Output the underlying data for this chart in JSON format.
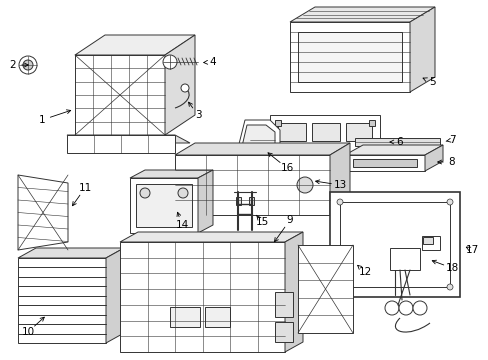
{
  "background_color": "#ffffff",
  "fig_width": 4.89,
  "fig_height": 3.6,
  "dpi": 100,
  "line_color": "#333333",
  "line_width": 0.7,
  "label_fontsize": 7.5,
  "text_color": "#000000"
}
